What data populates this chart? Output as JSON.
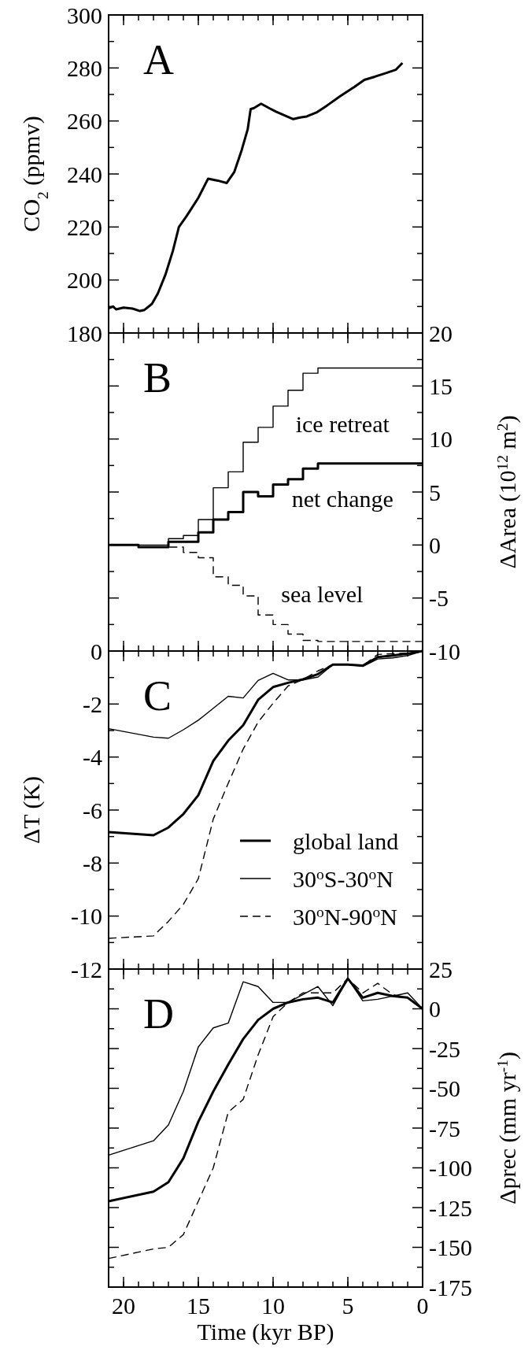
{
  "chart_data": [
    {
      "type": "line",
      "title": "A",
      "ylabel": "CO$_{2}$ (ppmv)",
      "xlim": [
        21,
        0
      ],
      "xticks": [
        20,
        15,
        10,
        5,
        0
      ],
      "ylim": [
        180,
        300
      ],
      "yticks": [
        180,
        200,
        220,
        240,
        260,
        280,
        300
      ],
      "tick_labels": "y",
      "series": [
        {
          "color": "#000000",
          "line_style": "solid",
          "x": [
            21,
            20.7,
            20.5,
            20,
            19.4,
            18.9,
            18.6,
            18.1,
            17.7,
            17.2,
            16.7,
            16.3,
            15.8,
            15.5,
            15.0,
            14.35,
            13.7,
            13.1,
            12.6,
            12.1,
            11.7,
            11.5,
            11.3,
            10.8,
            10.25,
            9.8,
            9.2,
            8.65,
            8.2,
            7.75,
            7.1,
            6.4,
            5.5,
            4.55,
            3.9,
            3.2,
            2.5,
            1.8,
            1.35
          ],
          "values": [
            189.3,
            190,
            188.9,
            189.6,
            189.2,
            188.3,
            188.7,
            191,
            195,
            202,
            211,
            220,
            224,
            226.6,
            231,
            238.2,
            237.5,
            236.6,
            240.7,
            249,
            256.8,
            264.5,
            264.8,
            266.5,
            264.8,
            263.5,
            262,
            260.7,
            261.3,
            261.7,
            263.2,
            265.8,
            269.4,
            272.9,
            275.5,
            276.7,
            278,
            279.3,
            281.9
          ]
        }
      ]
    },
    {
      "type": "step",
      "title": "B",
      "y2label": "ΔArea  (10$^{12}$ m$^{2}$)",
      "xlim": [
        21,
        0
      ],
      "xticks": [
        20,
        15,
        10,
        5,
        0
      ],
      "y2lim": [
        -10,
        20
      ],
      "y2ticks": [
        -10,
        -5,
        0,
        5,
        10,
        15,
        20
      ],
      "tick_labels": "y",
      "x": [
        21,
        20,
        19,
        18,
        17,
        16,
        15,
        14,
        13,
        12,
        11,
        10,
        9,
        8,
        7,
        6,
        5,
        4,
        3,
        2,
        1,
        0
      ],
      "annotations": [
        "ice retreat",
        "net change",
        "sea level"
      ],
      "series": [
        {
          "color": "#000000",
          "line_style": "solid",
          "axis": "y2",
          "values": [
            0,
            0,
            -0.2,
            -0.2,
            0.3,
            0.3,
            1.2,
            2.4,
            3.1,
            5.0,
            4.6,
            5.7,
            6.2,
            7.2,
            7.7,
            7.7,
            7.7,
            7.7,
            7.7,
            7.7,
            7.7,
            7.7
          ]
        },
        {
          "color": "#000000",
          "line_style": "solid",
          "axis": "y2",
          "values": [
            0,
            0,
            0,
            0,
            0.6,
            0.9,
            2.4,
            5.4,
            6.9,
            9.7,
            11.1,
            13.1,
            14.6,
            16.2,
            16.7,
            16.7,
            16.7,
            16.7,
            16.7,
            16.7,
            16.7,
            16.7
          ]
        },
        {
          "color": "#000000",
          "line_style": "dashed",
          "axis": "y2",
          "values": [
            0,
            0,
            -0.2,
            -0.2,
            -0.2,
            -0.7,
            -1.2,
            -3.0,
            -3.8,
            -4.8,
            -6.6,
            -7.5,
            -8.4,
            -9.0,
            -9.1,
            -9.1,
            -9.1,
            -9.1,
            -9.1,
            -9.1,
            -9.1,
            -9.1
          ]
        }
      ]
    },
    {
      "type": "line",
      "title": "C",
      "ylabel": "ΔT (K)",
      "xlim": [
        21,
        0
      ],
      "xticks": [
        20,
        15,
        10,
        5,
        0
      ],
      "ylim": [
        -12,
        0
      ],
      "yticks": [
        -12,
        -10,
        -8,
        -6,
        -4,
        -2,
        0
      ],
      "tick_labels": "y",
      "legend": "bottom right",
      "x": [
        21,
        18,
        17,
        16,
        15,
        14,
        13,
        12,
        11,
        10,
        9,
        8,
        7,
        6,
        5,
        4,
        3,
        2,
        1,
        0
      ],
      "series": [
        {
          "name": "global land",
          "color": "#000000",
          "line_style": "solid",
          "values": [
            -6.83,
            -6.95,
            -6.66,
            -6.15,
            -5.44,
            -4.15,
            -3.38,
            -2.8,
            -1.84,
            -1.36,
            -1.2,
            -1.07,
            -0.87,
            -0.51,
            -0.51,
            -0.55,
            -0.23,
            -0.17,
            -0.1,
            0
          ]
        },
        {
          "name": "30$^{o}$S-30$^{o}$N",
          "color": "#000000",
          "line_style": "solid",
          "values": [
            -2.93,
            -3.25,
            -3.29,
            -2.97,
            -2.61,
            -2.16,
            -1.71,
            -1.77,
            -1.11,
            -0.84,
            -1.09,
            -1.09,
            -0.98,
            -0.51,
            -0.51,
            -0.58,
            -0.3,
            -0.26,
            -0.17,
            0
          ]
        },
        {
          "name": "30$^{o}$N-90$^{o}$N",
          "color": "#000000",
          "line_style": "dashed",
          "values": [
            -10.84,
            -10.75,
            -10.2,
            -9.56,
            -8.59,
            -6.34,
            -4.99,
            -3.7,
            -2.68,
            -1.97,
            -1.32,
            -1.07,
            -0.75,
            -0.51,
            -0.51,
            -0.55,
            -0.13,
            -0.1,
            -0.08,
            0
          ]
        }
      ]
    },
    {
      "type": "line",
      "title": "D",
      "xlabel": "Time (kyr BP)",
      "y2label": "Δprec (mm yr$^{-1}$)",
      "xlim": [
        21,
        0
      ],
      "xticks": [
        20,
        15,
        10,
        5,
        0
      ],
      "y2lim": [
        -175,
        25
      ],
      "y2ticks": [
        -175,
        -150,
        -125,
        -100,
        -75,
        -50,
        -25,
        0,
        25
      ],
      "x": [
        21,
        18,
        17,
        16,
        15,
        14,
        13,
        12,
        11,
        10,
        9,
        8,
        7,
        6,
        5,
        4,
        3,
        2,
        1,
        0
      ],
      "series": [
        {
          "color": "#000000",
          "line_style": "solid",
          "axis": "y2",
          "values": [
            -121,
            -115,
            -109,
            -94,
            -71,
            -52,
            -35,
            -19,
            -7,
            0,
            4,
            6,
            7,
            4,
            19,
            7,
            10,
            8,
            7,
            0
          ]
        },
        {
          "color": "#000000",
          "line_style": "solid",
          "axis": "y2",
          "values": [
            -92,
            -83,
            -73,
            -52,
            -24,
            -12,
            -9,
            17,
            14,
            4,
            4,
            9,
            14,
            2,
            19,
            5,
            6,
            8,
            10,
            0
          ]
        },
        {
          "color": "#000000",
          "line_style": "dashed",
          "axis": "y2",
          "values": [
            -157,
            -151,
            -150,
            -142,
            -121,
            -100,
            -65,
            -57,
            -29,
            -5,
            4,
            10,
            10,
            10,
            19,
            10,
            16,
            9,
            7,
            0
          ]
        }
      ]
    }
  ]
}
